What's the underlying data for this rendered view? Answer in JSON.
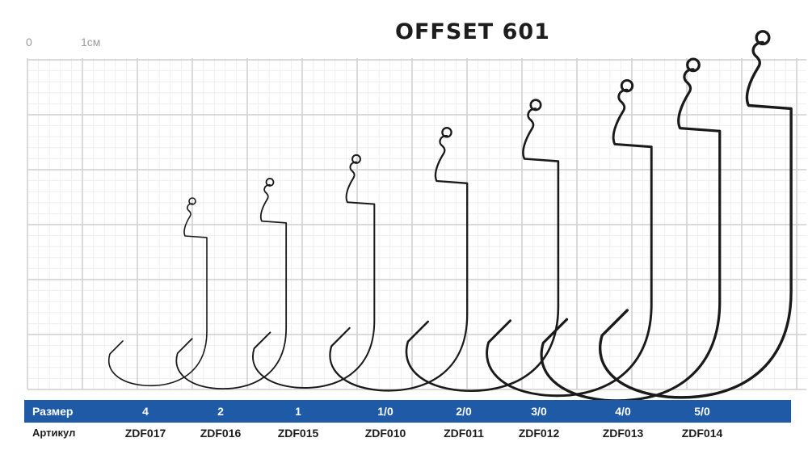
{
  "title": "OFFSET 601",
  "scale": {
    "zero_label": "0",
    "unit_label": "1см"
  },
  "table": {
    "size_label": "Размер",
    "article_label": "Артикул",
    "sizes": [
      "4",
      "2",
      "1",
      "1/0",
      "2/0",
      "3/0",
      "4/0",
      "5/0"
    ],
    "articles": [
      "ZDF017",
      "ZDF016",
      "ZDF015",
      "ZDF010",
      "ZDF011",
      "ZDF012",
      "ZDF013",
      "ZDF014"
    ]
  },
  "colors": {
    "bar": "#1f5aa6",
    "hook": "#1a1a1a",
    "grid_major": "#cfcfcf",
    "grid_minor": "#ececec"
  }
}
